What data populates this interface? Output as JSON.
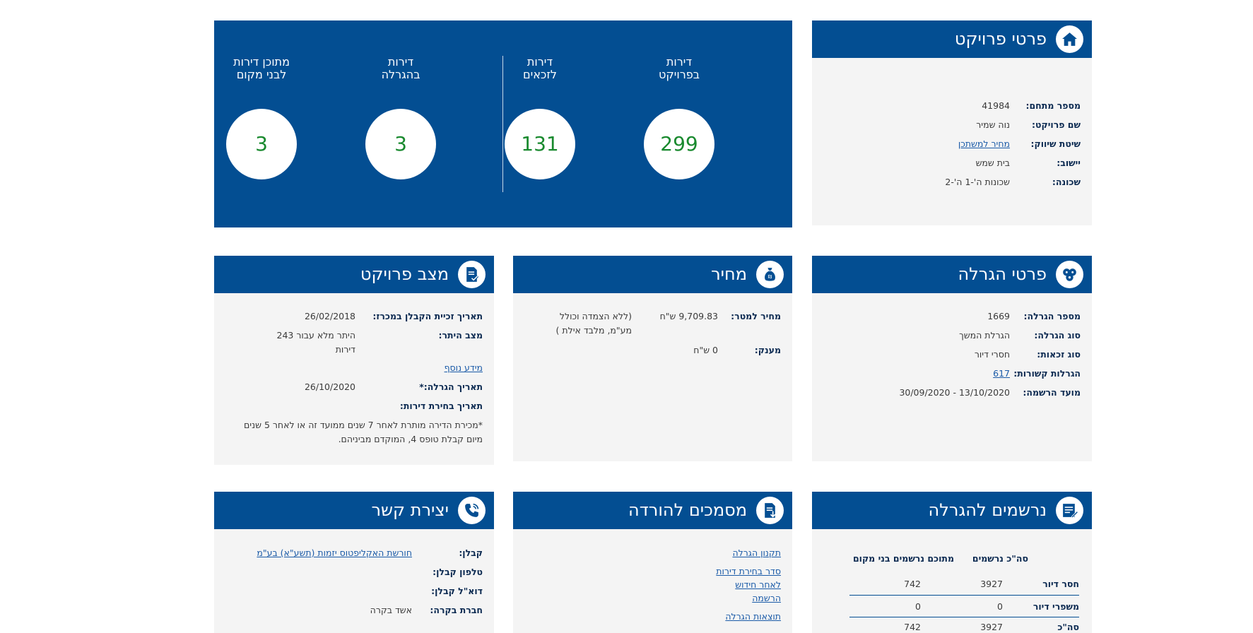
{
  "stats": [
    {
      "title_line1": "דירות",
      "title_line2": "בפרויקט",
      "value": "299"
    },
    {
      "title_line1": "דירות",
      "title_line2": "לזכאים",
      "value": "131"
    },
    {
      "title_line1": "דירות",
      "title_line2": "בהגרלה",
      "value": "3"
    },
    {
      "title_line1": "מתוכן דירות",
      "title_line2": "לבני מקום",
      "value": "3"
    }
  ],
  "project_details": {
    "title": "פרטי פרויקט",
    "rows": [
      {
        "label": "מספר מתחם:",
        "value": "41984"
      },
      {
        "label": "שם פרויקט:",
        "value": "נוה שמיר"
      },
      {
        "label": "שיטת שיווק:",
        "value": "מחיר למשתכן"
      },
      {
        "label": "יישוב:",
        "value": "בית שמש"
      },
      {
        "label": "שכונה:",
        "value": "שכונות ה'-1 ה'-2"
      }
    ]
  },
  "lottery_details": {
    "title": "פרטי הגרלה",
    "rows": [
      {
        "label": "מספר הגרלה:",
        "value": "1669"
      },
      {
        "label": "סוג הגרלה:",
        "value": "הגרלת המשך"
      },
      {
        "label": "סוג זכאות:",
        "value": "חסרי דיור"
      },
      {
        "label": "הגרלות קשורות:",
        "value": "617"
      },
      {
        "label": "מועד הרשמה:",
        "value": "13/10/2020 - 30/09/2020"
      }
    ]
  },
  "price": {
    "title": "מחיר",
    "per_meter_label": "מחיר למטר:",
    "per_meter_value": "9,709.83 ש\"ח",
    "per_meter_note_line1": "(ללא הצמדה וכולל",
    "per_meter_note_line2": "מע\"מ, מלבד אילת )",
    "grant_label": "מענק:",
    "grant_value": "0 ש\"ח"
  },
  "project_status": {
    "title": "מצב פרויקט",
    "contractor_win_label": "תאריך זכיית הקבלן במכרז:",
    "contractor_win_value": "26/02/2018",
    "site_status_label": "מצב היתר:",
    "site_status_line1": "היתר מלא עבור 243",
    "site_status_line2": "דירות",
    "more_info": "מידע נוסף",
    "lottery_date_label": "תאריך הגרלה:*",
    "lottery_date_value": "26/10/2020",
    "apartment_choice_label": "תאריך בחירת דירות:",
    "note_line1": "*מכירת הדירה מותרת לאחר 7 שנים ממועד זה או לאחר 5 שנים",
    "note_line2": "מיום קבלת טופס 4, המוקדם מביניהם."
  },
  "registrants": {
    "title": "נרשמים להגרלה",
    "col_total": "סה\"כ נרשמים",
    "col_local": "מתוכם נרשמים בני מקום",
    "rows": [
      {
        "label": "חסר דיור",
        "total": "3927",
        "local": "742"
      },
      {
        "label": "משפרי דיור",
        "total": "0",
        "local": "0"
      },
      {
        "label": "סה\"כ",
        "total": "3927",
        "local": "742"
      }
    ]
  },
  "documents": {
    "title": "מסמכים להורדה",
    "links": [
      "תקנון הגרלה",
      "סדר בחירת דירות",
      "לאחר חידוש",
      "הרשמה",
      "תוצאות הגרלה"
    ]
  },
  "contact": {
    "title": "יצירת קשר",
    "contractor_label": "קבלן:",
    "contractor_value": "חורשת האקליפטוס יזמות (תשע\"א) בע\"מ",
    "phone_label": "טלפון קבלן:",
    "email_label": "דוא\"ל קבלן:",
    "inspection_label": "חברת בקרה:",
    "inspection_value": "אשד בקרה"
  },
  "colors": {
    "brand_blue": "#034e92",
    "card_bg": "#f4f4f4",
    "stat_green": "#1a8a2f",
    "link_blue": "#1b5ba8"
  }
}
